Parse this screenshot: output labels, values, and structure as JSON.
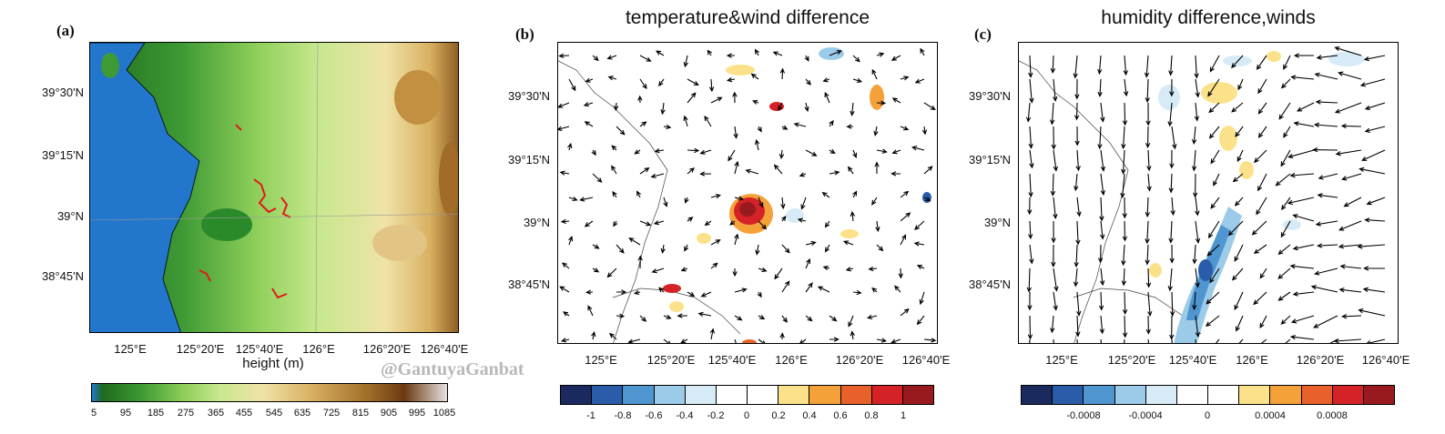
{
  "panels": {
    "a": {
      "letter": "(a)",
      "lat_ticks": [
        "39°30'N",
        "39°15'N",
        "39°N",
        "38°45'N"
      ],
      "lon_ticks": [
        "125°E",
        "125°20'E",
        "125°40'E",
        "126°E",
        "126°20'E",
        "126°40'E"
      ],
      "xlabel": "height (m)",
      "colorbar_ticks": [
        "5",
        "95",
        "185",
        "275",
        "365",
        "455",
        "545",
        "635",
        "725",
        "815",
        "905",
        "995",
        "1085"
      ],
      "colors": {
        "sea": "#2277cc",
        "low": "#1e6b1e",
        "mid": "#a8d66a",
        "high": "#e8d8a0",
        "peak": "#7a4a14",
        "urban": "#e01a1a"
      }
    },
    "b": {
      "letter": "(b)",
      "title": "temperature&wind difference",
      "lat_ticks": [
        "39°30'N",
        "39°15'N",
        "39°N",
        "38°45'N"
      ],
      "lon_ticks": [
        "125°E",
        "125°20'E",
        "125°40'E",
        "126°E",
        "126°20'E",
        "126°40'E"
      ],
      "colorbar_ticks": [
        "-1",
        "-0.8",
        "-0.6",
        "-0.4",
        "-0.2",
        "0",
        "0.2",
        "0.4",
        "0.6",
        "0.8",
        "1"
      ],
      "colorbar_colors": [
        "#1b2a5e",
        "#2a5caa",
        "#4f95d0",
        "#9ccbea",
        "#d6ebf6",
        "#ffffff",
        "#ffffff",
        "#fbe28a",
        "#f5a13a",
        "#e9612a",
        "#d42226",
        "#981a1e"
      ]
    },
    "c": {
      "letter": "(c)",
      "title": "humidity difference,winds",
      "lat_ticks": [
        "39°30'N",
        "39°15'N",
        "39°N",
        "38°45'N"
      ],
      "lon_ticks": [
        "125°E",
        "125°20'E",
        "125°40'E",
        "126°E",
        "126°20'E",
        "126°40'E"
      ],
      "colorbar_ticks": [
        "-0.0008",
        "-0.0004",
        "0",
        "0.0004",
        "0.0008"
      ],
      "colorbar_colors": [
        "#1b2a5e",
        "#2a5caa",
        "#4f95d0",
        "#9ccbea",
        "#d6ebf6",
        "#ffffff",
        "#ffffff",
        "#fbe28a",
        "#f5a13a",
        "#e9612a",
        "#d42226",
        "#981a1e"
      ]
    }
  },
  "watermark": "@GantuyaGanbat"
}
